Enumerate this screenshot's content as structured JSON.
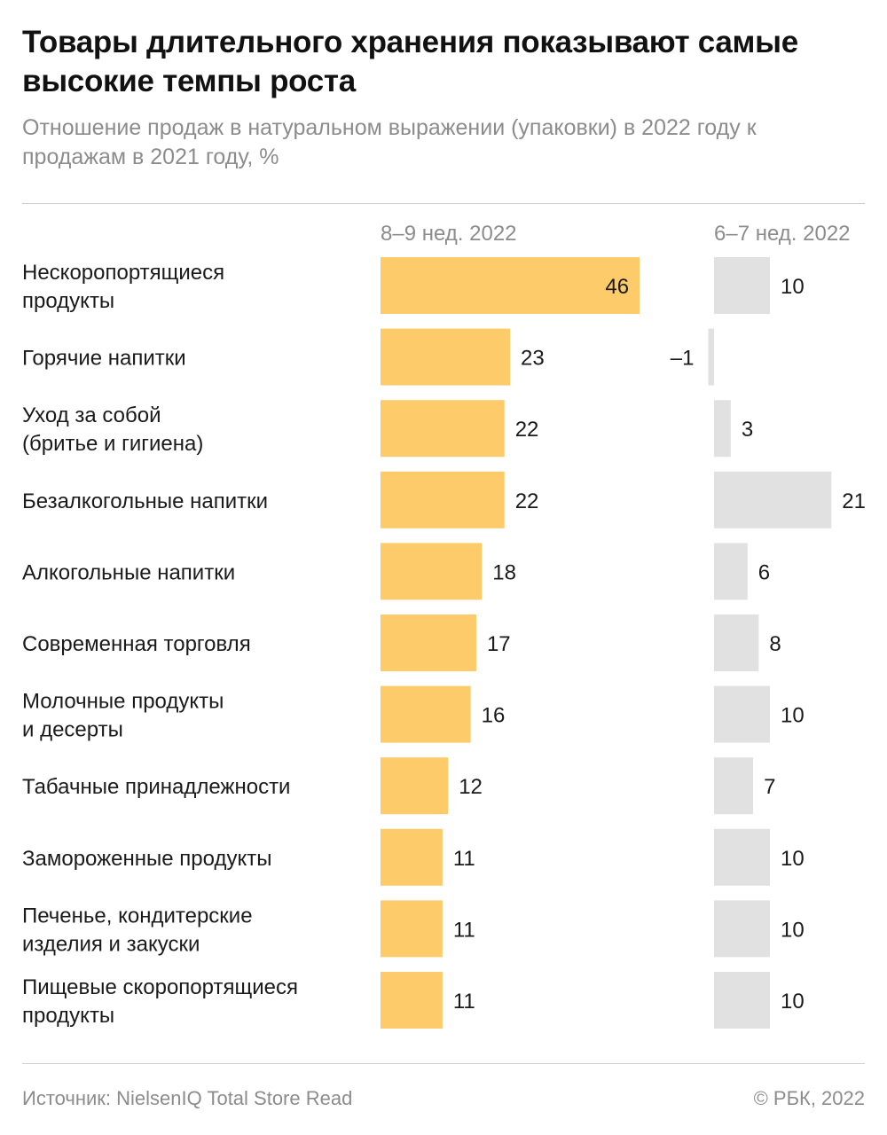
{
  "title": "Товары длительного хранения показывают самые высокие темпы роста",
  "subtitle": "Отношение продаж в натуральном выражении (упаковки) в 2022 году к продажам в 2021 году, %",
  "footer": {
    "source": "Источник: NielsenIQ Total Store Read",
    "copyright": "© РБК, 2022"
  },
  "colors": {
    "series1": "#fdcb6a",
    "series2": "#e1e1e1"
  },
  "chart_data": {
    "type": "bar",
    "orientation": "horizontal",
    "categories": [
      [
        "Нескоропортящиеся",
        "продукты"
      ],
      [
        "Горячие напитки"
      ],
      [
        "Уход за собой",
        "(бритье и гигиена)"
      ],
      [
        "Безалкогольные напитки"
      ],
      [
        "Алкогольные напитки"
      ],
      [
        "Современная торговля"
      ],
      [
        "Молочные продукты",
        "и десерты"
      ],
      [
        "Табачные принадлежности"
      ],
      [
        "Замороженные продукты"
      ],
      [
        "Печенье, кондитерские",
        "изделия и закуски"
      ],
      [
        "Пищевые скоропортящиеся",
        "продукты"
      ]
    ],
    "series": [
      {
        "name": "8–9 нед. 2022",
        "values": [
          46,
          23,
          22,
          22,
          18,
          17,
          16,
          12,
          11,
          11,
          11
        ],
        "labels": [
          "46",
          "23",
          "22",
          "22",
          "18",
          "17",
          "16",
          "12",
          "11",
          "11",
          "11"
        ]
      },
      {
        "name": "6–7 нед. 2022",
        "values": [
          10,
          -1,
          3,
          21,
          6,
          8,
          10,
          7,
          10,
          10,
          10
        ],
        "labels": [
          "10",
          "–1",
          "3",
          "21",
          "6",
          "8",
          "10",
          "7",
          "10",
          "10",
          "10"
        ]
      }
    ]
  }
}
